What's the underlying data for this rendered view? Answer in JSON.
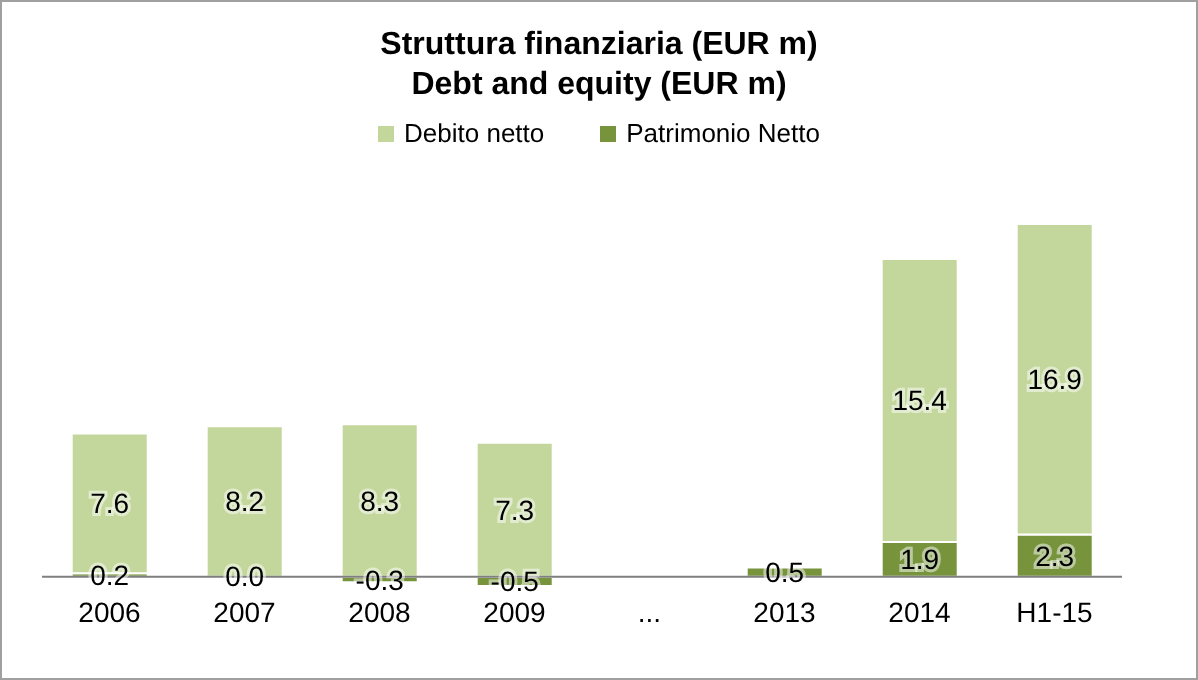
{
  "chart_data": {
    "type": "bar",
    "title": "Struttura finanziaria (EUR m)",
    "subtitle": "Debt and equity (EUR m)",
    "categories": [
      "2006",
      "2007",
      "2008",
      "2009",
      "...",
      "2013",
      "2014",
      "H1-15"
    ],
    "stacked": true,
    "legend": "top",
    "grid": false,
    "series": [
      {
        "name": "Patrimonio Netto",
        "color": "#77933c",
        "values": [
          0.2,
          0.0,
          -0.3,
          -0.5,
          null,
          0.5,
          1.9,
          2.3
        ],
        "value_labels": [
          "0.2",
          "0.0",
          "-0.3",
          "-0.5",
          null,
          "0.5",
          "1.9",
          "2.3"
        ]
      },
      {
        "name": "Debito netto",
        "color": "#c3d69b",
        "values": [
          7.6,
          8.2,
          8.3,
          7.3,
          null,
          null,
          15.4,
          16.9
        ],
        "value_labels": [
          "7.6",
          "8.2",
          "8.3",
          "7.3",
          null,
          null,
          "15.4",
          "16.9"
        ]
      }
    ]
  }
}
